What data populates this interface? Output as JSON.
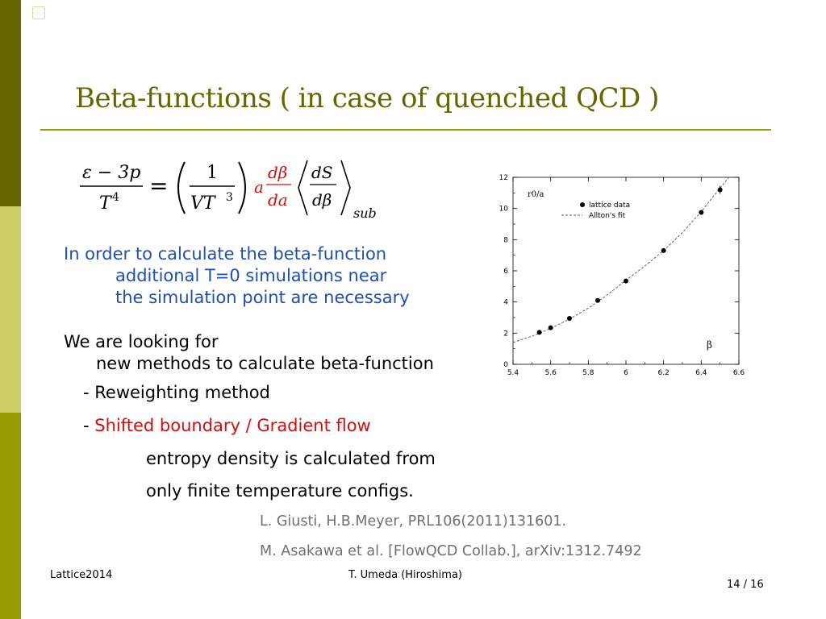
{
  "slide": {
    "title": "Beta-functions ( in case of quenched QCD )",
    "accent_colors": {
      "dark_olive": "#666600",
      "light_olive": "#cccc66",
      "olive": "#999900",
      "blue_text": "#1e4fb4",
      "red_text": "#cc1111"
    }
  },
  "formula": {
    "lhs_num": "ε − 3p",
    "lhs_den": "T",
    "lhs_den_exp": "4",
    "equals": "=",
    "factor_num": "1",
    "factor_den": "VT",
    "factor_den_exp": "3",
    "a": "a",
    "dbeta_num": "dβ",
    "dbeta_den": "da",
    "ds_num": "dS",
    "ds_den": "dβ",
    "subscript": "sub"
  },
  "body": {
    "line1": "In order to calculate the beta-function",
    "line2": "additional T=0 simulations near",
    "line3": "the simulation point are necessary",
    "line4": "We are looking for",
    "line5": "new methods to calculate beta-function",
    "item1": "- Reweighting method",
    "item2_dash": "- ",
    "item2_red": "Shifted boundary / Gradient flow",
    "line6": "entropy density is calculated from",
    "line7": "only finite temperature configs.",
    "ref1": "L. Giusti, H.B.Meyer, PRL106(2011)131601.",
    "ref2": "M. Asakawa et al. [FlowQCD Collab.], arXiv:1312.7492"
  },
  "footer": {
    "left": "Lattice2014",
    "center": "T. Umeda (Hiroshima)",
    "page": "14 / 16"
  },
  "chart_data": {
    "type": "scatter",
    "ylabel": "r0/a",
    "xlabel": "β",
    "xlim": [
      5.4,
      6.6
    ],
    "ylim": [
      0,
      12
    ],
    "xticks": [
      "5.4",
      "5.6",
      "5.8",
      "6",
      "6.2",
      "6.4",
      "6.6"
    ],
    "yticks": [
      "0",
      "2",
      "4",
      "6",
      "8",
      "10",
      "12"
    ],
    "legend_position": "top-left",
    "series": [
      {
        "name": "lattice data",
        "kind": "points",
        "x": [
          5.54,
          5.6,
          5.7,
          5.85,
          6.0,
          6.2,
          6.4,
          6.5
        ],
        "y": [
          2.05,
          2.35,
          2.95,
          4.1,
          5.35,
          7.3,
          9.75,
          11.2
        ]
      },
      {
        "name": "Allton's fit",
        "kind": "dashed-line",
        "x": [
          5.4,
          5.5,
          5.6,
          5.7,
          5.8,
          5.9,
          6.0,
          6.1,
          6.2,
          6.3,
          6.4,
          6.5,
          6.56
        ],
        "y": [
          1.4,
          1.8,
          2.3,
          2.9,
          3.6,
          4.45,
          5.4,
          6.3,
          7.3,
          8.45,
          9.8,
          11.3,
          12.2
        ]
      }
    ]
  }
}
